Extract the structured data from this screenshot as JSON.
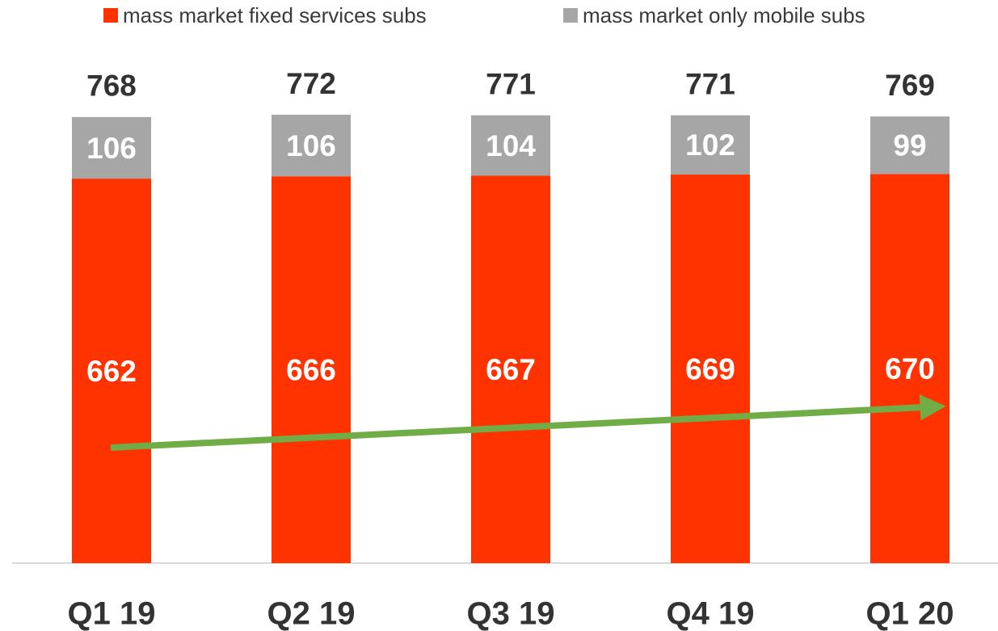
{
  "chart_data": {
    "type": "stacked_bar",
    "categories": [
      "Q1 19",
      "Q2 19",
      "Q3 19",
      "Q4 19",
      "Q1 20"
    ],
    "series": [
      {
        "name": "mass market fixed services subs",
        "color": "#ff3300",
        "values": [
          662,
          666,
          667,
          669,
          670
        ]
      },
      {
        "name": "mass market only mobile subs",
        "color": "#a6a6a6",
        "values": [
          106,
          106,
          104,
          102,
          99
        ]
      }
    ],
    "totals": [
      768,
      772,
      771,
      771,
      769
    ],
    "legend": "top"
  }
}
